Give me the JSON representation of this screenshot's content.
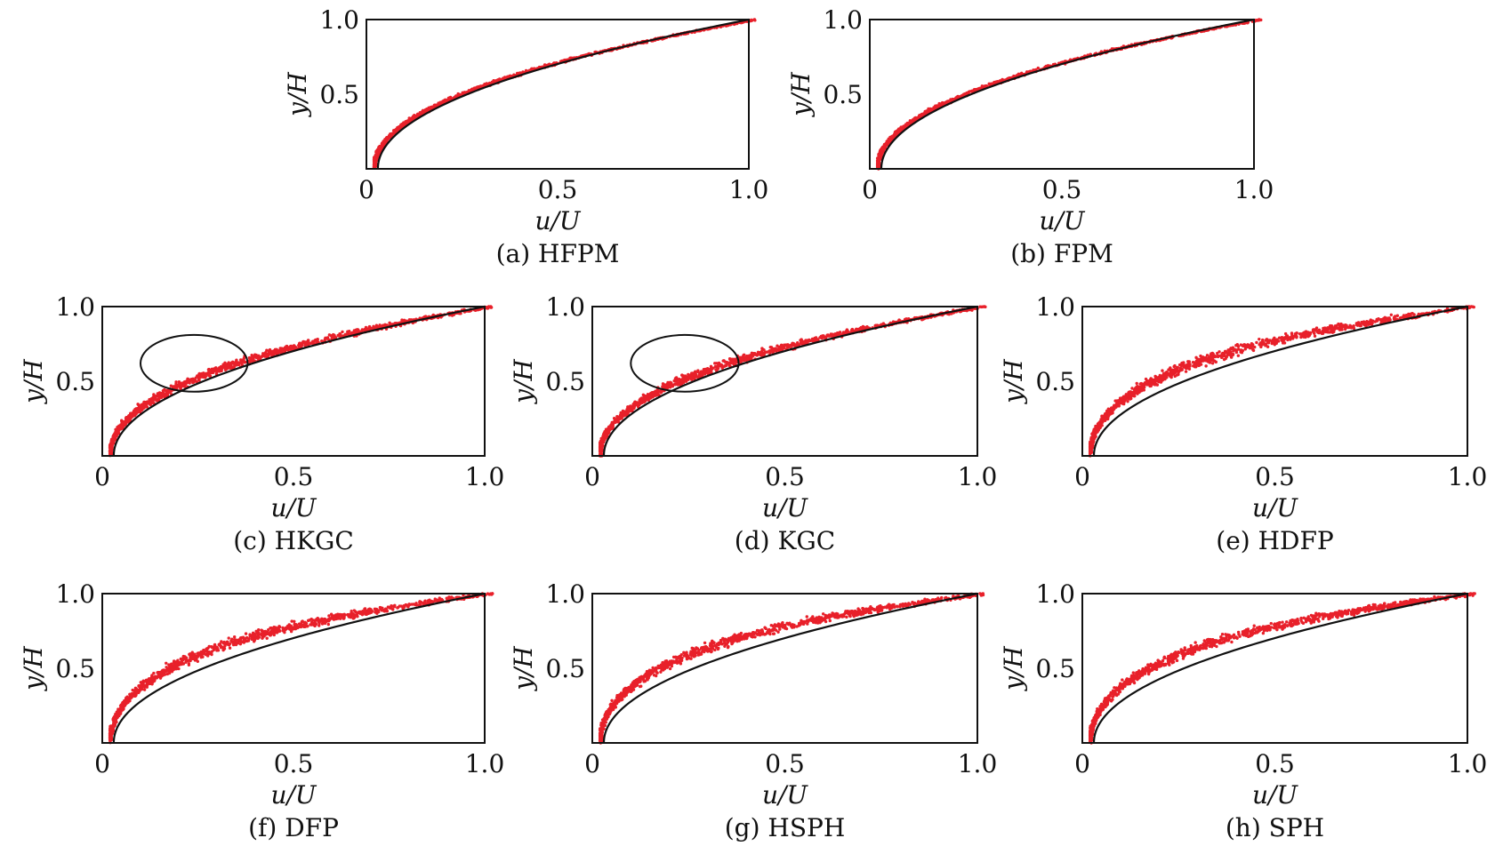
{
  "chart_data": [
    {
      "id": "a",
      "type": "scatter",
      "caption": "(a) HFPM",
      "xlabel": "u/U",
      "ylabel": "y/H",
      "xlim": [
        0,
        1.0
      ],
      "ylim": [
        0,
        1.0
      ],
      "xticks": [
        "0",
        "0.5",
        "1.0"
      ],
      "yticks": [
        "0.5",
        "1.0"
      ],
      "reference_curve": "analytical profile (solid black)",
      "scatter": {
        "color": "#e8202a",
        "n_points": 1000,
        "spread": 0.01,
        "bias": 0.006,
        "approx_profile": [
          [
            0.03,
            0.0
          ],
          [
            0.1,
            0.15
          ],
          [
            0.25,
            0.42
          ],
          [
            0.5,
            0.66
          ],
          [
            0.75,
            0.82
          ],
          [
            0.9,
            0.96
          ],
          [
            1.0,
            1.0
          ]
        ]
      },
      "annotation_ellipse": null
    },
    {
      "id": "b",
      "type": "scatter",
      "caption": "(b) FPM",
      "xlabel": "u/U",
      "ylabel": "y/H",
      "xlim": [
        0,
        1.0
      ],
      "ylim": [
        0,
        1.0
      ],
      "xticks": [
        "0",
        "0.5",
        "1.0"
      ],
      "yticks": [
        "0.5",
        "1.0"
      ],
      "reference_curve": "analytical profile (solid black)",
      "scatter": {
        "color": "#e8202a",
        "n_points": 1000,
        "spread": 0.01,
        "bias": 0.006,
        "approx_profile": [
          [
            0.03,
            0.0
          ],
          [
            0.1,
            0.15
          ],
          [
            0.25,
            0.42
          ],
          [
            0.5,
            0.66
          ],
          [
            0.75,
            0.82
          ],
          [
            0.9,
            0.96
          ],
          [
            1.0,
            1.0
          ]
        ]
      },
      "annotation_ellipse": null
    },
    {
      "id": "c",
      "type": "scatter",
      "caption": "(c) HKGC",
      "xlabel": "u/U",
      "ylabel": "y/H",
      "xlim": [
        0,
        1.0
      ],
      "ylim": [
        0,
        1.0
      ],
      "xticks": [
        "0",
        "0.5",
        "1.0"
      ],
      "yticks": [
        "0.5",
        "1.0"
      ],
      "reference_curve": "analytical profile (solid black)",
      "scatter": {
        "color": "#e8202a",
        "n_points": 1100,
        "spread": 0.028,
        "bias": 0.018,
        "approx_profile": [
          [
            0.03,
            0.0
          ],
          [
            0.1,
            0.2
          ],
          [
            0.25,
            0.5
          ],
          [
            0.5,
            0.7
          ],
          [
            0.75,
            0.85
          ],
          [
            1.0,
            1.0
          ]
        ]
      },
      "annotation_ellipse": {
        "cx": 0.24,
        "cy": 0.62,
        "rx": 0.14,
        "ry": 0.19
      }
    },
    {
      "id": "d",
      "type": "scatter",
      "caption": "(d) KGC",
      "xlabel": "u/U",
      "ylabel": "y/H",
      "xlim": [
        0,
        1.0
      ],
      "ylim": [
        0,
        1.0
      ],
      "xticks": [
        "0",
        "0.5",
        "1.0"
      ],
      "yticks": [
        "0.5",
        "1.0"
      ],
      "reference_curve": "analytical profile (solid black)",
      "scatter": {
        "color": "#e8202a",
        "n_points": 1100,
        "spread": 0.028,
        "bias": 0.018,
        "approx_profile": [
          [
            0.03,
            0.0
          ],
          [
            0.1,
            0.2
          ],
          [
            0.25,
            0.5
          ],
          [
            0.5,
            0.7
          ],
          [
            0.75,
            0.85
          ],
          [
            1.0,
            1.0
          ]
        ]
      },
      "annotation_ellipse": {
        "cx": 0.24,
        "cy": 0.62,
        "rx": 0.14,
        "ry": 0.19
      }
    },
    {
      "id": "e",
      "type": "scatter",
      "caption": "(e) HDFP",
      "xlabel": "u/U",
      "ylabel": "y/H",
      "xlim": [
        0,
        1.0
      ],
      "ylim": [
        0,
        1.0
      ],
      "xticks": [
        "0",
        "0.5",
        "1.0"
      ],
      "yticks": [
        "0.5",
        "1.0"
      ],
      "reference_curve": "analytical profile (solid black)",
      "scatter": {
        "color": "#e8202a",
        "n_points": 1100,
        "spread": 0.035,
        "bias": 0.045,
        "approx_profile": [
          [
            0.03,
            0.0
          ],
          [
            0.1,
            0.3
          ],
          [
            0.25,
            0.58
          ],
          [
            0.5,
            0.76
          ],
          [
            0.75,
            0.88
          ],
          [
            1.0,
            1.0
          ]
        ]
      },
      "annotation_ellipse": null
    },
    {
      "id": "f",
      "type": "scatter",
      "caption": "(f) DFP",
      "xlabel": "u/U",
      "ylabel": "y/H",
      "xlim": [
        0,
        1.0
      ],
      "ylim": [
        0,
        1.0
      ],
      "xticks": [
        "0",
        "0.5",
        "1.0"
      ],
      "yticks": [
        "0.5",
        "1.0"
      ],
      "reference_curve": "analytical profile (solid black)",
      "scatter": {
        "color": "#e8202a",
        "n_points": 1100,
        "spread": 0.035,
        "bias": 0.05,
        "approx_profile": [
          [
            0.03,
            0.0
          ],
          [
            0.1,
            0.32
          ],
          [
            0.25,
            0.6
          ],
          [
            0.5,
            0.77
          ],
          [
            0.75,
            0.88
          ],
          [
            1.0,
            1.0
          ]
        ]
      },
      "annotation_ellipse": null
    },
    {
      "id": "g",
      "type": "scatter",
      "caption": "(g) HSPH",
      "xlabel": "u/U",
      "ylabel": "y/H",
      "xlim": [
        0,
        1.0
      ],
      "ylim": [
        0,
        1.0
      ],
      "xticks": [
        "0",
        "0.5",
        "1.0"
      ],
      "yticks": [
        "0.5",
        "1.0"
      ],
      "reference_curve": "analytical profile (solid black)",
      "scatter": {
        "color": "#e8202a",
        "n_points": 1100,
        "spread": 0.035,
        "bias": 0.05,
        "approx_profile": [
          [
            0.03,
            0.0
          ],
          [
            0.1,
            0.32
          ],
          [
            0.25,
            0.6
          ],
          [
            0.5,
            0.77
          ],
          [
            0.75,
            0.88
          ],
          [
            1.0,
            1.0
          ]
        ]
      },
      "annotation_ellipse": null
    },
    {
      "id": "h",
      "type": "scatter",
      "caption": "(h) SPH",
      "xlabel": "u/U",
      "ylabel": "y/H",
      "xlim": [
        0,
        1.0
      ],
      "ylim": [
        0,
        1.0
      ],
      "xticks": [
        "0",
        "0.5",
        "1.0"
      ],
      "yticks": [
        "0.5",
        "1.0"
      ],
      "reference_curve": "analytical profile (solid black)",
      "scatter": {
        "color": "#e8202a",
        "n_points": 1100,
        "spread": 0.035,
        "bias": 0.05,
        "approx_profile": [
          [
            0.03,
            0.0
          ],
          [
            0.1,
            0.32
          ],
          [
            0.25,
            0.6
          ],
          [
            0.5,
            0.77
          ],
          [
            0.75,
            0.88
          ],
          [
            1.0,
            1.0
          ]
        ]
      },
      "annotation_ellipse": null
    }
  ]
}
